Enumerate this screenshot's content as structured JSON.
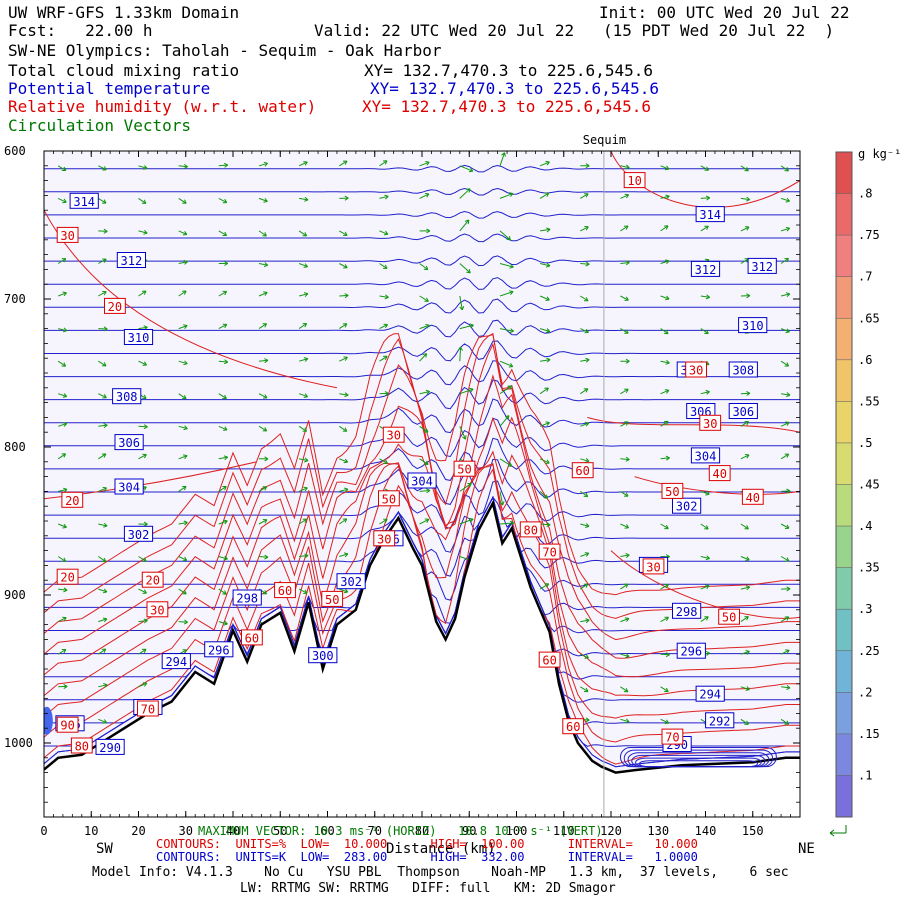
{
  "header": {
    "line1_left": "UW WRF-GFS 1.33km Domain",
    "line1_right": "Init: 00 UTC Wed 20 Jul 22",
    "line2_left": "Fcst:   22.00 h",
    "line2_right": "Valid: 22 UTC Wed 20 Jul 22   (15 PDT Wed 20 Jul 22  )",
    "line3": "SW-NE Olympics: Taholah - Sequim - Oak Harbor",
    "field1_name": "Total cloud mixing ratio",
    "field1_xy": "XY= 132.7,470.3 to 225.6,545.6",
    "field2_name": "Potential temperature",
    "field2_xy": "XY= 132.7,470.3 to 225.6,545.6",
    "field3_name": "Relative humidity (w.r.t. water)",
    "field3_xy": "XY= 132.7,470.3 to 225.6,545.6",
    "field4_name": "Circulation Vectors"
  },
  "marker_label": "Sequim",
  "colorbar": {
    "unit": "g kg⁻¹",
    "labels": [
      ".8",
      ".75",
      ".7",
      ".65",
      ".6",
      ".55",
      ".5",
      ".45",
      ".4",
      ".35",
      ".3",
      ".25",
      ".2",
      ".15",
      ".1"
    ],
    "colors": [
      "#e05050",
      "#ea6a6a",
      "#f08080",
      "#f29a78",
      "#f4b070",
      "#f0c468",
      "#e8d468",
      "#d8dc70",
      "#b8dc7c",
      "#98d48c",
      "#80ccaa",
      "#70c0c4",
      "#70b4d8",
      "#7aa0e0",
      "#7c88e0",
      "#7a70dc"
    ]
  },
  "footer": {
    "max_vector": "MAXIMUM VECTOR: 10.3 ms⁻¹ (HORIZ)   10.8 10⁻² s⁻¹ (VERT)",
    "sw": "SW",
    "ne": "NE",
    "distance": "Distance (km)",
    "rh_contours": "CONTOURS:  UNITS=%  LOW=  10.000      HIGH=  100.00      INTERVAL=   10.000",
    "th_contours": "CONTOURS:  UNITS=K  LOW=  283.00      HIGH=  332.00      INTERVAL=   1.0000",
    "model_info": "Model Info: V4.1.3    No Cu   YSU PBL  Thompson    Noah-MP   1.3 km,  37 levels,    6 sec",
    "model_info2": "LW: RRTMG SW: RRTMG   DIFF: full   KM: 2D Smagor"
  },
  "chart_data": {
    "type": "contour-cross-section",
    "xlabel": "Distance (km)",
    "ylabel": "",
    "xlim": [
      0,
      160
    ],
    "ylim": [
      1050,
      600
    ],
    "x_ticks": [
      0,
      10,
      20,
      30,
      40,
      50,
      60,
      70,
      80,
      90,
      100,
      110,
      120,
      130,
      140,
      150
    ],
    "y_ticks": [
      600,
      700,
      800,
      900,
      1000
    ],
    "y_tick_labels": [
      "600",
      "700",
      "800",
      "900",
      "1000"
    ],
    "sequim_x": 118.5,
    "terrain": [
      [
        0,
        1018
      ],
      [
        3,
        1010
      ],
      [
        8,
        1008
      ],
      [
        12,
        1000
      ],
      [
        18,
        988
      ],
      [
        22,
        980
      ],
      [
        27,
        972
      ],
      [
        32,
        952
      ],
      [
        36,
        960
      ],
      [
        40,
        924
      ],
      [
        43,
        945
      ],
      [
        46,
        920
      ],
      [
        50,
        912
      ],
      [
        53,
        938
      ],
      [
        56,
        905
      ],
      [
        59,
        950
      ],
      [
        62,
        920
      ],
      [
        66,
        910
      ],
      [
        69,
        880
      ],
      [
        72,
        862
      ],
      [
        75,
        848
      ],
      [
        78,
        868
      ],
      [
        80,
        880
      ],
      [
        83,
        918
      ],
      [
        85,
        930
      ],
      [
        87,
        916
      ],
      [
        89,
        888
      ],
      [
        92,
        856
      ],
      [
        95,
        838
      ],
      [
        97,
        865
      ],
      [
        99,
        855
      ],
      [
        101,
        875
      ],
      [
        103,
        895
      ],
      [
        105,
        910
      ],
      [
        107,
        925
      ],
      [
        109,
        960
      ],
      [
        111,
        985
      ],
      [
        113,
        1000
      ],
      [
        116,
        1012
      ],
      [
        118,
        1016
      ],
      [
        121,
        1020
      ],
      [
        126,
        1018
      ],
      [
        135,
        1015
      ],
      [
        150,
        1013
      ],
      [
        157,
        1010
      ],
      [
        160,
        1010
      ]
    ],
    "theta_labels": [
      {
        "x": 8.5,
        "p": 634,
        "v": "314"
      },
      {
        "x": 18.5,
        "p": 674,
        "v": "312"
      },
      {
        "x": 20,
        "p": 726,
        "v": "310"
      },
      {
        "x": 17.5,
        "p": 766,
        "v": "308"
      },
      {
        "x": 18,
        "p": 797,
        "v": "306"
      },
      {
        "x": 18,
        "p": 827,
        "v": "304"
      },
      {
        "x": 20,
        "p": 859,
        "v": "302"
      },
      {
        "x": 43,
        "p": 902,
        "v": "298"
      },
      {
        "x": 65,
        "p": 891,
        "v": "302"
      },
      {
        "x": 80,
        "p": 823,
        "v": "304"
      },
      {
        "x": 73,
        "p": 862,
        "v": "306"
      },
      {
        "x": 59,
        "p": 941,
        "v": "300"
      },
      {
        "x": 37,
        "p": 937,
        "v": "296"
      },
      {
        "x": 28,
        "p": 945,
        "v": "294"
      },
      {
        "x": 22,
        "p": 976,
        "v": "292"
      },
      {
        "x": 5.5,
        "p": 987,
        "v": "295"
      },
      {
        "x": 14,
        "p": 1003,
        "v": "290"
      },
      {
        "x": 141,
        "p": 643,
        "v": "314"
      },
      {
        "x": 140,
        "p": 680,
        "v": "312"
      },
      {
        "x": 152,
        "p": 678,
        "v": "312"
      },
      {
        "x": 150,
        "p": 718,
        "v": "310"
      },
      {
        "x": 148,
        "p": 748,
        "v": "308"
      },
      {
        "x": 137,
        "p": 748,
        "v": "308"
      },
      {
        "x": 139,
        "p": 776,
        "v": "306"
      },
      {
        "x": 148,
        "p": 776,
        "v": "306"
      },
      {
        "x": 140,
        "p": 806,
        "v": "304"
      },
      {
        "x": 136,
        "p": 840,
        "v": "302"
      },
      {
        "x": 129,
        "p": 880,
        "v": "300"
      },
      {
        "x": 136,
        "p": 911,
        "v": "298"
      },
      {
        "x": 137,
        "p": 938,
        "v": "296"
      },
      {
        "x": 141,
        "p": 967,
        "v": "294"
      },
      {
        "x": 143,
        "p": 985,
        "v": "292"
      },
      {
        "x": 134,
        "p": 1001,
        "v": "290"
      }
    ],
    "rh_labels": [
      {
        "x": 5,
        "p": 657,
        "v": "30"
      },
      {
        "x": 15,
        "p": 705,
        "v": "20"
      },
      {
        "x": 6,
        "p": 836,
        "v": "20"
      },
      {
        "x": 5,
        "p": 888,
        "v": "20"
      },
      {
        "x": 23,
        "p": 890,
        "v": "20"
      },
      {
        "x": 24,
        "p": 910,
        "v": "30"
      },
      {
        "x": 44,
        "p": 929,
        "v": "60"
      },
      {
        "x": 51,
        "p": 897,
        "v": "60"
      },
      {
        "x": 61,
        "p": 903,
        "v": "50"
      },
      {
        "x": 72,
        "p": 862,
        "v": "30"
      },
      {
        "x": 73,
        "p": 835,
        "v": "50"
      },
      {
        "x": 74,
        "p": 792,
        "v": "30"
      },
      {
        "x": 89,
        "p": 815,
        "v": "50"
      },
      {
        "x": 103,
        "p": 856,
        "v": "80"
      },
      {
        "x": 107,
        "p": 871,
        "v": "70"
      },
      {
        "x": 114,
        "p": 816,
        "v": "60"
      },
      {
        "x": 107,
        "p": 944,
        "v": "60"
      },
      {
        "x": 112,
        "p": 989,
        "v": "60"
      },
      {
        "x": 125,
        "p": 620,
        "v": "10"
      },
      {
        "x": 133,
        "p": 830,
        "v": "50"
      },
      {
        "x": 143,
        "p": 818,
        "v": "40"
      },
      {
        "x": 150,
        "p": 834,
        "v": "40"
      },
      {
        "x": 141,
        "p": 784,
        "v": "30"
      },
      {
        "x": 138,
        "p": 748,
        "v": "30"
      },
      {
        "x": 129,
        "p": 881,
        "v": "30"
      },
      {
        "x": 145,
        "p": 915,
        "v": "50"
      },
      {
        "x": 133,
        "p": 996,
        "v": "70"
      },
      {
        "x": 5,
        "p": 988,
        "v": "90"
      },
      {
        "x": 8,
        "p": 1002,
        "v": "80"
      },
      {
        "x": 22,
        "p": 977,
        "v": "70"
      }
    ]
  }
}
